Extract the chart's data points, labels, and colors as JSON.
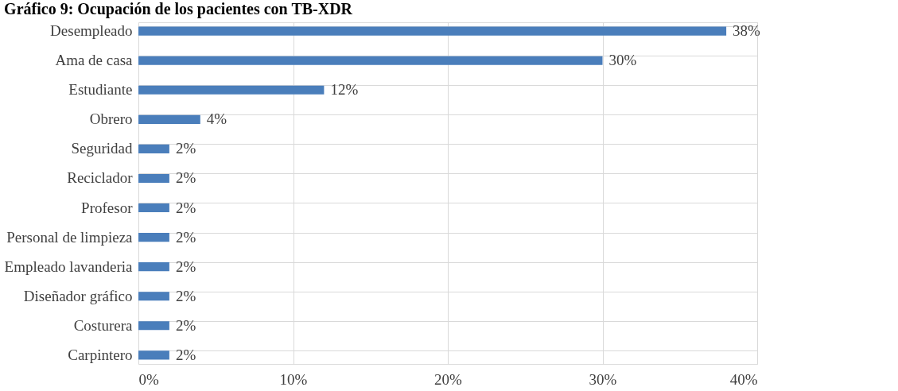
{
  "chart_data": {
    "type": "bar",
    "orientation": "horizontal",
    "title": "Gráfico 9: Ocupación de los pacientes con TB-XDR",
    "categories": [
      "Desempleado",
      "Ama de casa",
      "Estudiante",
      "Obrero",
      "Seguridad",
      "Reciclador",
      "Profesor",
      "Personal de limpieza",
      "Empleado lavanderia",
      "Diseñador gráfico",
      "Costurera",
      "Carpintero"
    ],
    "values": [
      38,
      30,
      12,
      4,
      2,
      2,
      2,
      2,
      2,
      2,
      2,
      2
    ],
    "value_labels": [
      "38%",
      "30%",
      "12%",
      "4%",
      "2%",
      "2%",
      "2%",
      "2%",
      "2%",
      "2%",
      "2%",
      "2%"
    ],
    "color": "#4a7ebb",
    "xlim": [
      0,
      40
    ],
    "xticks": [
      {
        "value": 0,
        "label": "0%"
      },
      {
        "value": 10,
        "label": "10%"
      },
      {
        "value": 20,
        "label": "20%"
      },
      {
        "value": 30,
        "label": "30%"
      },
      {
        "value": 40,
        "label": "40%"
      }
    ],
    "grid": true
  }
}
